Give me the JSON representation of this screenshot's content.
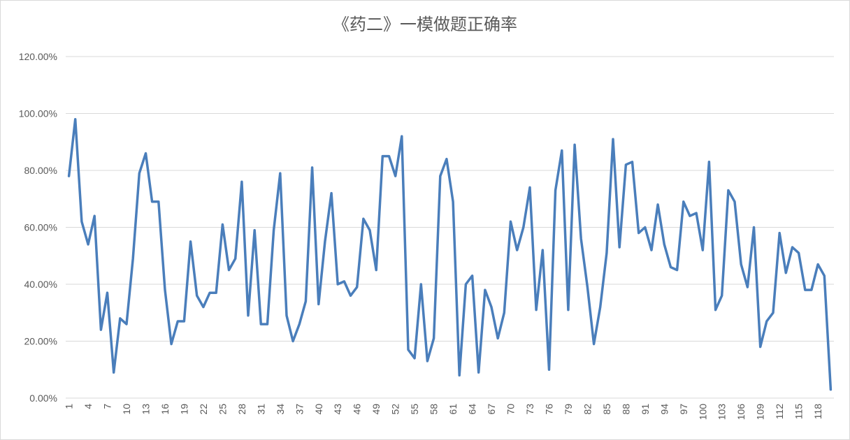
{
  "chart_data": {
    "type": "line",
    "title": "《药二》一模做题正确率",
    "xlabel": "",
    "ylabel": "",
    "ylim": [
      0,
      1.2
    ],
    "y_tick_labels": [
      "0.00%",
      "20.00%",
      "40.00%",
      "60.00%",
      "80.00%",
      "100.00%",
      "120.00%"
    ],
    "x_tick_labels": [
      "1",
      "4",
      "7",
      "10",
      "13",
      "16",
      "19",
      "22",
      "25",
      "28",
      "31",
      "34",
      "37",
      "40",
      "43",
      "46",
      "49",
      "52",
      "55",
      "58",
      "61",
      "64",
      "67",
      "70",
      "73",
      "76",
      "79",
      "82",
      "85",
      "88",
      "91",
      "94",
      "97",
      "100",
      "103",
      "106",
      "109",
      "112",
      "115",
      "118"
    ],
    "x": [
      1,
      2,
      3,
      4,
      5,
      6,
      7,
      8,
      9,
      10,
      11,
      12,
      13,
      14,
      15,
      16,
      17,
      18,
      19,
      20,
      21,
      22,
      23,
      24,
      25,
      26,
      27,
      28,
      29,
      30,
      31,
      32,
      33,
      34,
      35,
      36,
      37,
      38,
      39,
      40,
      41,
      42,
      43,
      44,
      45,
      46,
      47,
      48,
      49,
      50,
      51,
      52,
      53,
      54,
      55,
      56,
      57,
      58,
      59,
      60,
      61,
      62,
      63,
      64,
      65,
      66,
      67,
      68,
      69,
      70,
      71,
      72,
      73,
      74,
      75,
      76,
      77,
      78,
      79,
      80,
      81,
      82,
      83,
      84,
      85,
      86,
      87,
      88,
      89,
      90,
      91,
      92,
      93,
      94,
      95,
      96,
      97,
      98,
      99,
      100,
      101,
      102,
      103,
      104,
      105,
      106,
      107,
      108,
      109,
      110,
      111,
      112,
      113,
      114,
      115,
      116,
      117,
      118,
      119,
      120
    ],
    "series": [
      {
        "values": [
          0.78,
          0.98,
          0.62,
          0.54,
          0.64,
          0.24,
          0.37,
          0.09,
          0.28,
          0.26,
          0.49,
          0.79,
          0.86,
          0.69,
          0.69,
          0.38,
          0.19,
          0.27,
          0.27,
          0.55,
          0.36,
          0.32,
          0.37,
          0.37,
          0.61,
          0.45,
          0.49,
          0.76,
          0.29,
          0.59,
          0.26,
          0.26,
          0.59,
          0.79,
          0.29,
          0.2,
          0.26,
          0.34,
          0.81,
          0.33,
          0.55,
          0.72,
          0.4,
          0.41,
          0.36,
          0.39,
          0.63,
          0.59,
          0.45,
          0.85,
          0.85,
          0.78,
          0.92,
          0.17,
          0.14,
          0.4,
          0.13,
          0.21,
          0.78,
          0.84,
          0.69,
          0.08,
          0.4,
          0.43,
          0.09,
          0.38,
          0.32,
          0.21,
          0.3,
          0.62,
          0.52,
          0.6,
          0.74,
          0.31,
          0.52,
          0.1,
          0.73,
          0.87,
          0.31,
          0.89,
          0.56,
          0.39,
          0.19,
          0.32,
          0.51,
          0.91,
          0.53,
          0.82,
          0.83,
          0.58,
          0.6,
          0.52,
          0.68,
          0.54,
          0.46,
          0.45,
          0.69,
          0.64,
          0.65,
          0.52,
          0.83,
          0.31,
          0.36,
          0.73,
          0.69,
          0.47,
          0.39,
          0.6,
          0.18,
          0.27,
          0.3,
          0.58,
          0.44,
          0.53,
          0.51,
          0.38,
          0.38,
          0.47,
          0.43,
          0.03
        ]
      }
    ],
    "grid": true,
    "legend": "none",
    "line_color": "#4a7ebb",
    "grid_color": "#d9d9d9"
  }
}
